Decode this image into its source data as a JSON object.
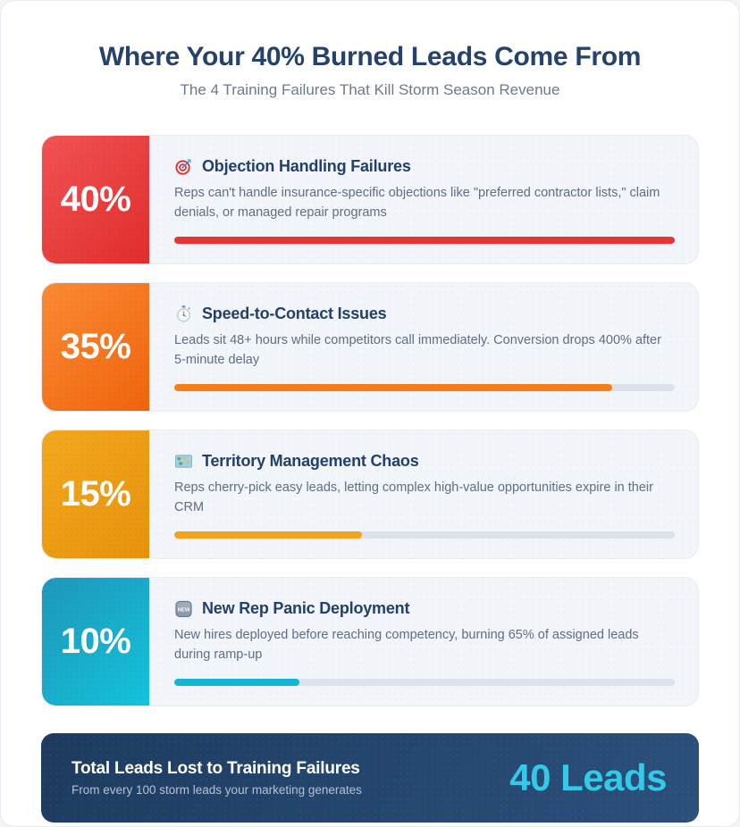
{
  "header": {
    "title": "Where Your 40% Burned Leads Come From",
    "subtitle": "The 4 Training Failures That Kill Storm Season Revenue"
  },
  "chart_data": {
    "type": "bar",
    "title": "Where Your 40% Burned Leads Come From",
    "subtitle": "The 4 Training Failures That Kill Storm Season Revenue",
    "categories": [
      "Objection Handling Failures",
      "Speed-to-Contact Issues",
      "Territory Management Chaos",
      "New Rep Panic Deployment"
    ],
    "values": [
      40,
      35,
      15,
      10
    ],
    "unit": "%",
    "scale_max": 40,
    "orientation": "horizontal",
    "total": "40 Leads"
  },
  "items": [
    {
      "percent_label": "40%",
      "value": 40,
      "icon": "target-icon",
      "title": "Objection Handling Failures",
      "description": "Reps can't handle insurance-specific objections like \"preferred contractor lists,\" claim denials, or managed repair programs",
      "gradient": [
        "#f25353",
        "#e12d2d"
      ],
      "bar_color": "#e73434"
    },
    {
      "percent_label": "35%",
      "value": 35,
      "icon": "stopwatch-icon",
      "title": "Speed-to-Contact Issues",
      "description": "Leads sit 48+ hours while competitors call immediately. Conversion drops 400% after 5-minute delay",
      "gradient": [
        "#fb8b33",
        "#f0640e"
      ],
      "bar_color": "#f97d16"
    },
    {
      "percent_label": "15%",
      "value": 15,
      "icon": "world-map-icon",
      "title": "Territory Management Chaos",
      "description": "Reps cherry-pick easy leads, letting complex high-value opportunities expire in their CRM",
      "gradient": [
        "#f2a91e",
        "#e8920c"
      ],
      "bar_color": "#f2a41a"
    },
    {
      "percent_label": "10%",
      "value": 10,
      "icon": "new-badge-icon",
      "icon_label": "NEW",
      "title": "New Rep Panic Deployment",
      "description": "New hires deployed before reaching competency, burning 65% of assigned leads during ramp-up",
      "gradient": [
        "#1f97ba",
        "#13c3dc"
      ],
      "bar_color": "#12b4d4"
    }
  ],
  "footer": {
    "title": "Total Leads Lost to Training Failures",
    "subtitle": "From every 100 storm leads your marketing generates",
    "value": "40 Leads"
  },
  "colors": {
    "title_navy": "#24426b",
    "card_bg": "#f2f5f9",
    "track": "#dce1ea",
    "footer_navy_start": "#1d3b60",
    "footer_navy_end": "#2b507b",
    "accent_cyan": "#33c9e9"
  }
}
